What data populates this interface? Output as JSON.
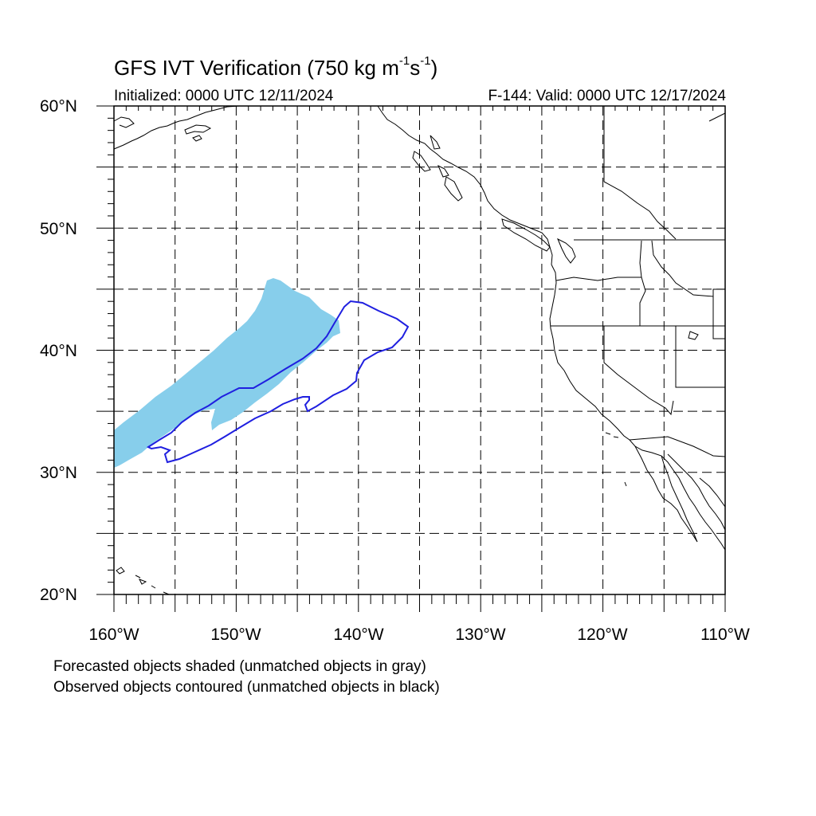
{
  "title": {
    "main": "GFS IVT Verification (750 kg m",
    "exp1": "-1",
    "mid": "s",
    "exp2": "-1",
    "end": ")"
  },
  "subtitle_left": "Initialized: 0000 UTC 12/11/2024",
  "subtitle_right": "F-144: Valid: 0000 UTC 12/17/2024",
  "lat_labels": [
    "60°N",
    "50°N",
    "40°N",
    "30°N",
    "20°N"
  ],
  "lon_labels": [
    "160°W",
    "150°W",
    "140°W",
    "130°W",
    "120°W",
    "110°W"
  ],
  "legend": [
    "Forecasted objects shaded (unmatched objects in gray)",
    "Observed objects contoured (unmatched objects in black)"
  ],
  "colors": {
    "forecast_fill": "#87ceeb",
    "observed_contour": "#1f1fe0",
    "coastline": "#000000",
    "grid": "#000000"
  },
  "map": {
    "lon_range": [
      -160,
      -110
    ],
    "lat_range": [
      20,
      60
    ],
    "grid_step_deg": 5,
    "grid_style": "dashed",
    "projection": "cylindrical-equidistant"
  }
}
